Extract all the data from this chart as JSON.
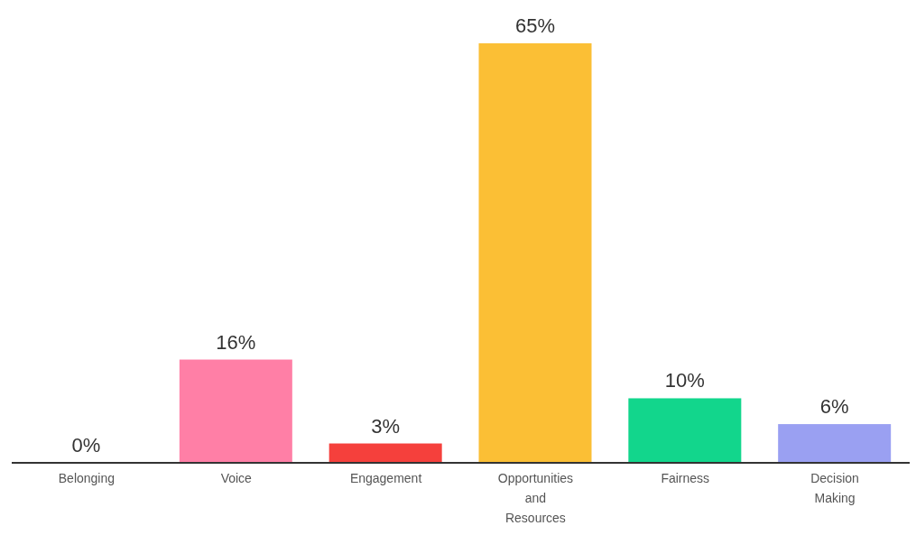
{
  "chart_data": {
    "type": "bar",
    "categories": [
      "Belonging",
      "Voice",
      "Engagement",
      "Opportunities and Resources",
      "Fairness",
      "Decision Making"
    ],
    "values": [
      0,
      16,
      3,
      65,
      10,
      6
    ],
    "value_labels": [
      "0%",
      "16%",
      "3%",
      "65%",
      "10%",
      "6%"
    ],
    "colors": [
      "#8c8c8c",
      "#ff7fa6",
      "#f5403c",
      "#fbbf35",
      "#12d68c",
      "#9aa0f2"
    ],
    "grid": false,
    "legend": false
  }
}
